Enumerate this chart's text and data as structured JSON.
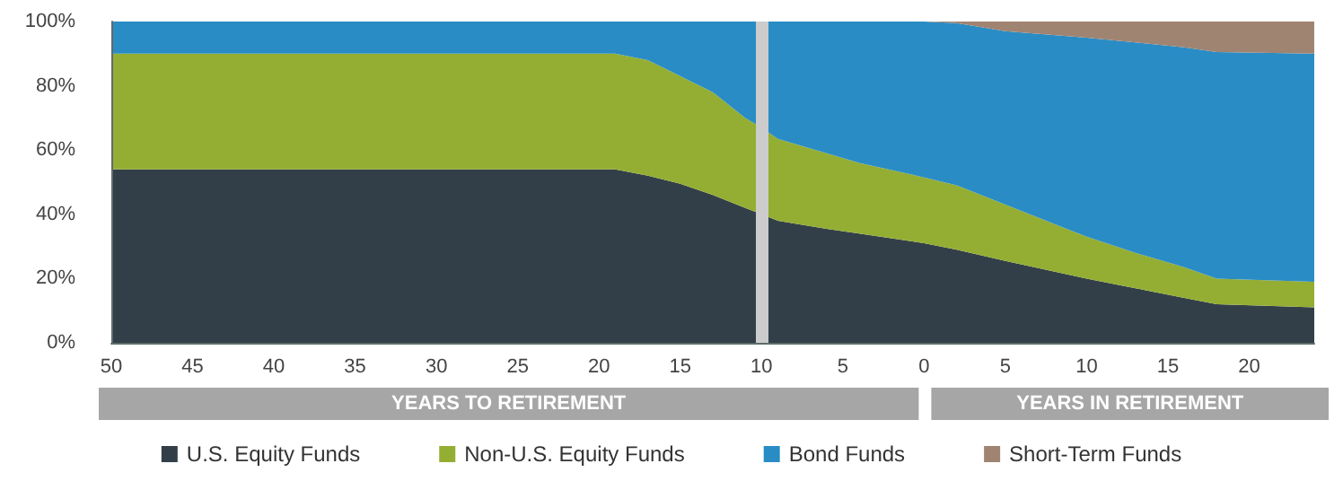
{
  "chart_data": {
    "type": "area",
    "stacked": true,
    "marker": "none",
    "grid": false,
    "legend": "bottom",
    "x": [
      -50,
      -19,
      -17,
      -15,
      -13,
      -11,
      -10,
      -9,
      -6,
      -4,
      0,
      2,
      5,
      10,
      13,
      16,
      18,
      24
    ],
    "series": [
      {
        "name": "U.S. Equity Funds",
        "color": "#333f48",
        "values": [
          54,
          54,
          52,
          49.5,
          46,
          42,
          40,
          38,
          35.5,
          34,
          31,
          29,
          25.5,
          20,
          17,
          14,
          12,
          11
        ]
      },
      {
        "name": "Non-U.S. Equity Funds",
        "color": "#94ae33",
        "values": [
          36,
          36,
          36,
          33.5,
          32,
          28,
          27,
          25.5,
          23.5,
          22,
          20.5,
          20,
          17.5,
          13,
          11,
          9.5,
          8,
          8
        ]
      },
      {
        "name": "Bond Funds",
        "color": "#2a8cc4",
        "values": [
          10,
          10,
          12,
          17,
          22,
          30,
          33,
          36.5,
          41,
          44,
          48.5,
          50.5,
          54,
          62,
          65.5,
          68.5,
          70.5,
          71
        ]
      },
      {
        "name": "Short-Term Funds",
        "color": "#a08472",
        "values": [
          0,
          0,
          0,
          0,
          0,
          0,
          0,
          0,
          0,
          0,
          0,
          0.5,
          3,
          5,
          6.5,
          8,
          9.5,
          10
        ]
      }
    ],
    "xlim": [
      -50,
      24
    ],
    "xticks": [
      {
        "value": -50,
        "label": "50"
      },
      {
        "value": -45,
        "label": "45"
      },
      {
        "value": -40,
        "label": "40"
      },
      {
        "value": -35,
        "label": "35"
      },
      {
        "value": -30,
        "label": "30"
      },
      {
        "value": -25,
        "label": "25"
      },
      {
        "value": -20,
        "label": "20"
      },
      {
        "value": -15,
        "label": "15"
      },
      {
        "value": -10,
        "label": "10"
      },
      {
        "value": -5,
        "label": "5"
      },
      0,
      5,
      10,
      15,
      20
    ],
    "ylim": [
      0,
      100
    ],
    "yticks": [
      {
        "value": 0,
        "label": "0%"
      },
      {
        "value": 20,
        "label": "20%"
      },
      {
        "value": 40,
        "label": "40%"
      },
      {
        "value": 60,
        "label": "60%"
      },
      {
        "value": 80,
        "label": "80%"
      },
      {
        "value": 100,
        "label": "100%"
      }
    ],
    "ref_lines": [
      {
        "axis": "x",
        "value": -10,
        "color": "#cccccc"
      }
    ],
    "annotations": [
      "YEARS TO RETIREMENT",
      "YEARS IN RETIREMENT"
    ]
  }
}
